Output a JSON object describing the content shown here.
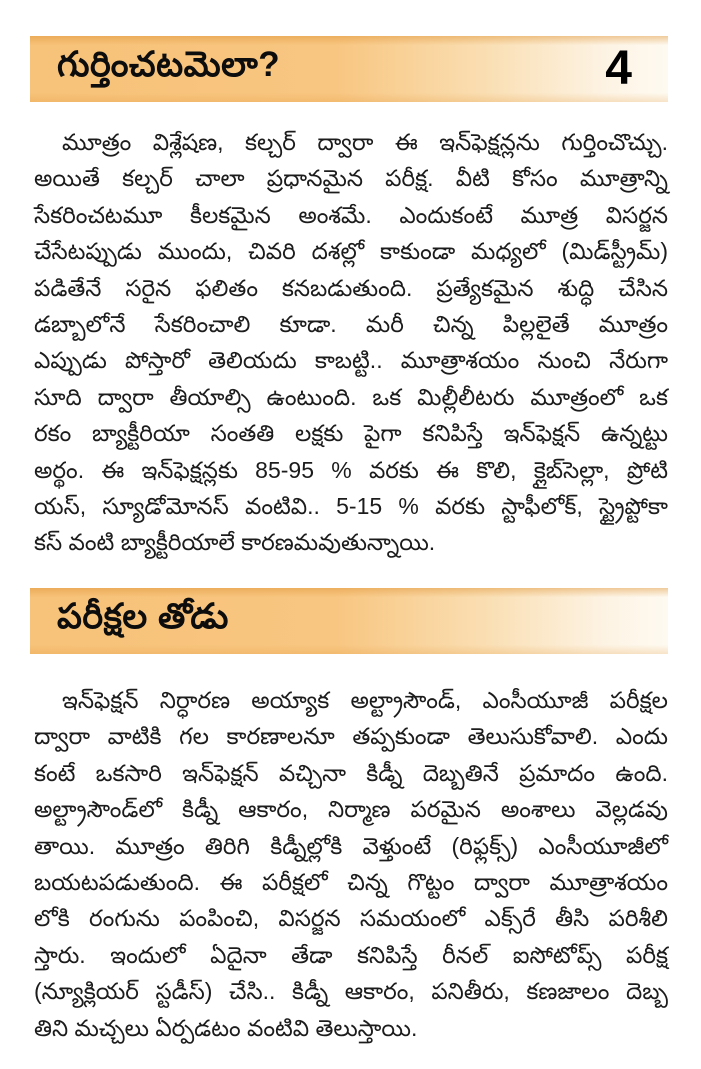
{
  "page": {
    "number": "4",
    "accent_left": "#f8c57e",
    "accent_right": "#fdf5e8",
    "text_color": "#1a1a1a"
  },
  "sections": [
    {
      "heading": "గుర్తించటమెలా?",
      "lines": [
        "మూత్రం విశ్లేషణ, కల్చర్ ద్వారా ఈ ఇన్‌ఫెక్షన్లను గుర్తించొచ్చు.",
        "అయితే కల్చర్ చాలా ప్రధానమైన పరీక్ష. వీటి కోసం మూత్రాన్ని",
        "సేకరించటమూ కీలకమైన అంశమే. ఎందుకంటే మూత్ర విసర్జన",
        "చేసేటప్పుడు ముందు, చివరి దశల్లో కాకుండా మధ్యలో (మిడ్‌స్ట్రీమ్)",
        "పడితేనే సరైన ఫలితం కనబడుతుంది. ప్రత్యేకమైన శుద్ధి చేసిన",
        "డబ్బాలోనే సేకరించాలి కూడా. మరీ చిన్న పిల్లలైతే మూత్రం",
        "ఎప్పుడు పోస్తారో తెలియదు కాబట్టి.. మూత్రాశయం నుంచి నేరుగా",
        "సూది ద్వారా తీయాల్సి ఉంటుంది. ఒక మిల్లీలీటరు మూత్రంలో ఒక",
        "రకం బ్యాక్టీరియా సంతతి లక్షకు పైగా కనిపిస్తే ఇన్‌ఫెక్షన్ ఉన్నట్టు",
        "అర్థం. ఈ ఇన్‌ఫెక్షన్లకు 85-95 % వరకు ఈ కొలి, క్లైబ్‌సెల్లా, ప్రోటి",
        "యస్, స్యూడోమోనస్ వంటివి.. 5-15 % వరకు స్టాఫీలోక్, స్ట్రైప్టోకా",
        "కస్ వంటి బ్యాక్టీరియాలే కారణమవుతున్నాయి."
      ]
    },
    {
      "heading": "పరీక్షల తోడు",
      "lines": [
        "ఇన్‌ఫెక్షన్ నిర్ధారణ అయ్యాక అల్ట్రాసౌండ్, ఎంసీయూజీ పరీక్షల",
        "ద్వారా వాటికి గల కారణాలనూ తప్పకుండా తెలుసుకోవాలి. ఎందు",
        "కంటే ఒకసారి ఇన్‌ఫెక్షన్ వచ్చినా కిడ్నీ దెబ్బతినే ప్రమాదం ఉంది.",
        "అల్ట్రాసౌండ్‌లో కిడ్నీ ఆకారం, నిర్మాణ పరమైన అంశాలు వెల్లడవు",
        "తాయి. మూత్రం తిరిగి కిడ్నీల్లోకి వెళ్తుంటే (రిఫ్లక్స్) ఎంసీయూజీలో",
        "బయటపడుతుంది. ఈ పరీక్షలో చిన్న గొట్టం ద్వారా మూత్రాశయం",
        "లోకి రంగును పంపించి, విసర్జన సమయంలో ఎక్స్‌రే తీసి పరిశీలి",
        "స్తారు. ఇందులో ఏదైనా తేడా కనిపిస్తే రీనల్ ఐసోటోప్స్ పరీక్ష",
        "(న్యూక్లియర్ స్టడీస్) చేసి.. కిడ్నీ ఆకారం, పనితీరు, కణజాలం దెబ్బ",
        "తిని మచ్చలు ఏర్పడటం వంటివి తెలుస్తాయి."
      ]
    }
  ]
}
